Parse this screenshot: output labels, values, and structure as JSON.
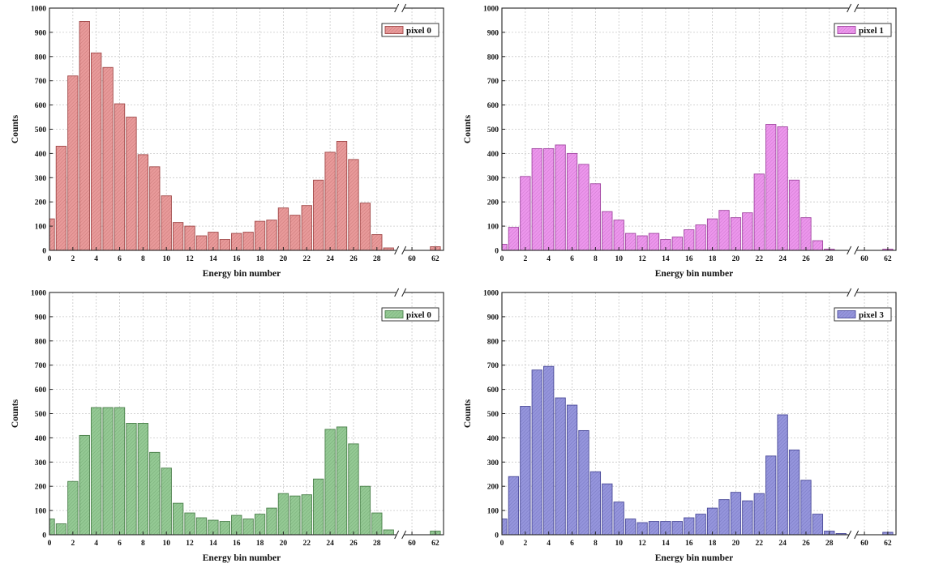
{
  "charts": [
    {
      "type": "bar",
      "xlabel": "Energy bin number",
      "ylabel": "Counts",
      "legend": "pixel 0",
      "color": "#e89a9a",
      "stroke": "#a04848",
      "ylim": [
        0,
        1000
      ],
      "yticks": [
        0,
        100,
        200,
        300,
        400,
        500,
        600,
        700,
        800,
        900,
        1000
      ],
      "xticks": [
        "0",
        "2",
        "4",
        "6",
        "8",
        "10",
        "12",
        "14",
        "16",
        "18",
        "20",
        "22",
        "24",
        "26",
        "28",
        "60",
        "62"
      ],
      "bins": [
        0,
        1,
        2,
        3,
        4,
        5,
        6,
        7,
        8,
        9,
        10,
        11,
        12,
        13,
        14,
        15,
        16,
        17,
        18,
        19,
        20,
        21,
        22,
        23,
        24,
        25,
        26,
        27,
        28,
        29,
        "break",
        "60",
        "61",
        "62"
      ],
      "values": [
        130,
        430,
        720,
        945,
        815,
        755,
        605,
        550,
        395,
        345,
        225,
        115,
        100,
        60,
        75,
        45,
        70,
        75,
        120,
        125,
        175,
        145,
        185,
        290,
        405,
        450,
        375,
        195,
        65,
        10,
        null,
        0,
        0,
        15
      ]
    },
    {
      "type": "bar",
      "xlabel": "Energy bin number",
      "ylabel": "Counts",
      "legend": "pixel 1",
      "color": "#ec96ec",
      "stroke": "#a046a0",
      "ylim": [
        0,
        1000
      ],
      "yticks": [
        0,
        100,
        200,
        300,
        400,
        500,
        600,
        700,
        800,
        900,
        1000
      ],
      "xticks": [
        "0",
        "2",
        "4",
        "6",
        "8",
        "10",
        "12",
        "14",
        "16",
        "18",
        "20",
        "22",
        "24",
        "26",
        "28",
        "60",
        "62"
      ],
      "bins": [
        0,
        1,
        2,
        3,
        4,
        5,
        6,
        7,
        8,
        9,
        10,
        11,
        12,
        13,
        14,
        15,
        16,
        17,
        18,
        19,
        20,
        21,
        22,
        23,
        24,
        25,
        26,
        27,
        28,
        29,
        "break",
        "60",
        "61",
        "62"
      ],
      "values": [
        25,
        95,
        305,
        420,
        420,
        435,
        400,
        355,
        275,
        160,
        125,
        70,
        60,
        70,
        45,
        55,
        85,
        105,
        130,
        165,
        135,
        155,
        315,
        520,
        510,
        290,
        135,
        40,
        5,
        0,
        null,
        0,
        0,
        5
      ]
    },
    {
      "type": "bar",
      "xlabel": "Energy bin number",
      "ylabel": "Counts",
      "legend": "pixel 0",
      "color": "#94c994",
      "stroke": "#4a7f4a",
      "ylim": [
        0,
        1000
      ],
      "yticks": [
        0,
        100,
        200,
        300,
        400,
        500,
        600,
        700,
        800,
        900,
        1000
      ],
      "xticks": [
        "0",
        "2",
        "4",
        "6",
        "8",
        "10",
        "12",
        "14",
        "16",
        "18",
        "20",
        "22",
        "24",
        "26",
        "28",
        "60",
        "62"
      ],
      "bins": [
        0,
        1,
        2,
        3,
        4,
        5,
        6,
        7,
        8,
        9,
        10,
        11,
        12,
        13,
        14,
        15,
        16,
        17,
        18,
        19,
        20,
        21,
        22,
        23,
        24,
        25,
        26,
        27,
        28,
        29,
        "break",
        "60",
        "61",
        "62"
      ],
      "values": [
        65,
        45,
        220,
        410,
        525,
        525,
        525,
        460,
        460,
        340,
        275,
        130,
        90,
        70,
        60,
        55,
        80,
        65,
        85,
        110,
        170,
        160,
        165,
        230,
        435,
        445,
        375,
        200,
        90,
        20,
        null,
        0,
        0,
        15
      ]
    },
    {
      "type": "bar",
      "xlabel": "Energy bin number",
      "ylabel": "Counts",
      "legend": "pixel 3",
      "color": "#9595dc",
      "stroke": "#4a4a98",
      "ylim": [
        0,
        1000
      ],
      "yticks": [
        0,
        100,
        200,
        300,
        400,
        500,
        600,
        700,
        800,
        900,
        1000
      ],
      "xticks": [
        "0",
        "2",
        "4",
        "6",
        "8",
        "10",
        "12",
        "14",
        "16",
        "18",
        "20",
        "22",
        "24",
        "26",
        "28",
        "60",
        "62"
      ],
      "bins": [
        0,
        1,
        2,
        3,
        4,
        5,
        6,
        7,
        8,
        9,
        10,
        11,
        12,
        13,
        14,
        15,
        16,
        17,
        18,
        19,
        20,
        21,
        22,
        23,
        24,
        25,
        26,
        27,
        28,
        29,
        "break",
        "60",
        "61",
        "62"
      ],
      "values": [
        65,
        240,
        530,
        680,
        695,
        565,
        535,
        430,
        260,
        210,
        135,
        65,
        50,
        55,
        55,
        55,
        70,
        85,
        110,
        145,
        175,
        140,
        170,
        325,
        495,
        350,
        225,
        85,
        15,
        5,
        null,
        0,
        0,
        10
      ]
    }
  ]
}
